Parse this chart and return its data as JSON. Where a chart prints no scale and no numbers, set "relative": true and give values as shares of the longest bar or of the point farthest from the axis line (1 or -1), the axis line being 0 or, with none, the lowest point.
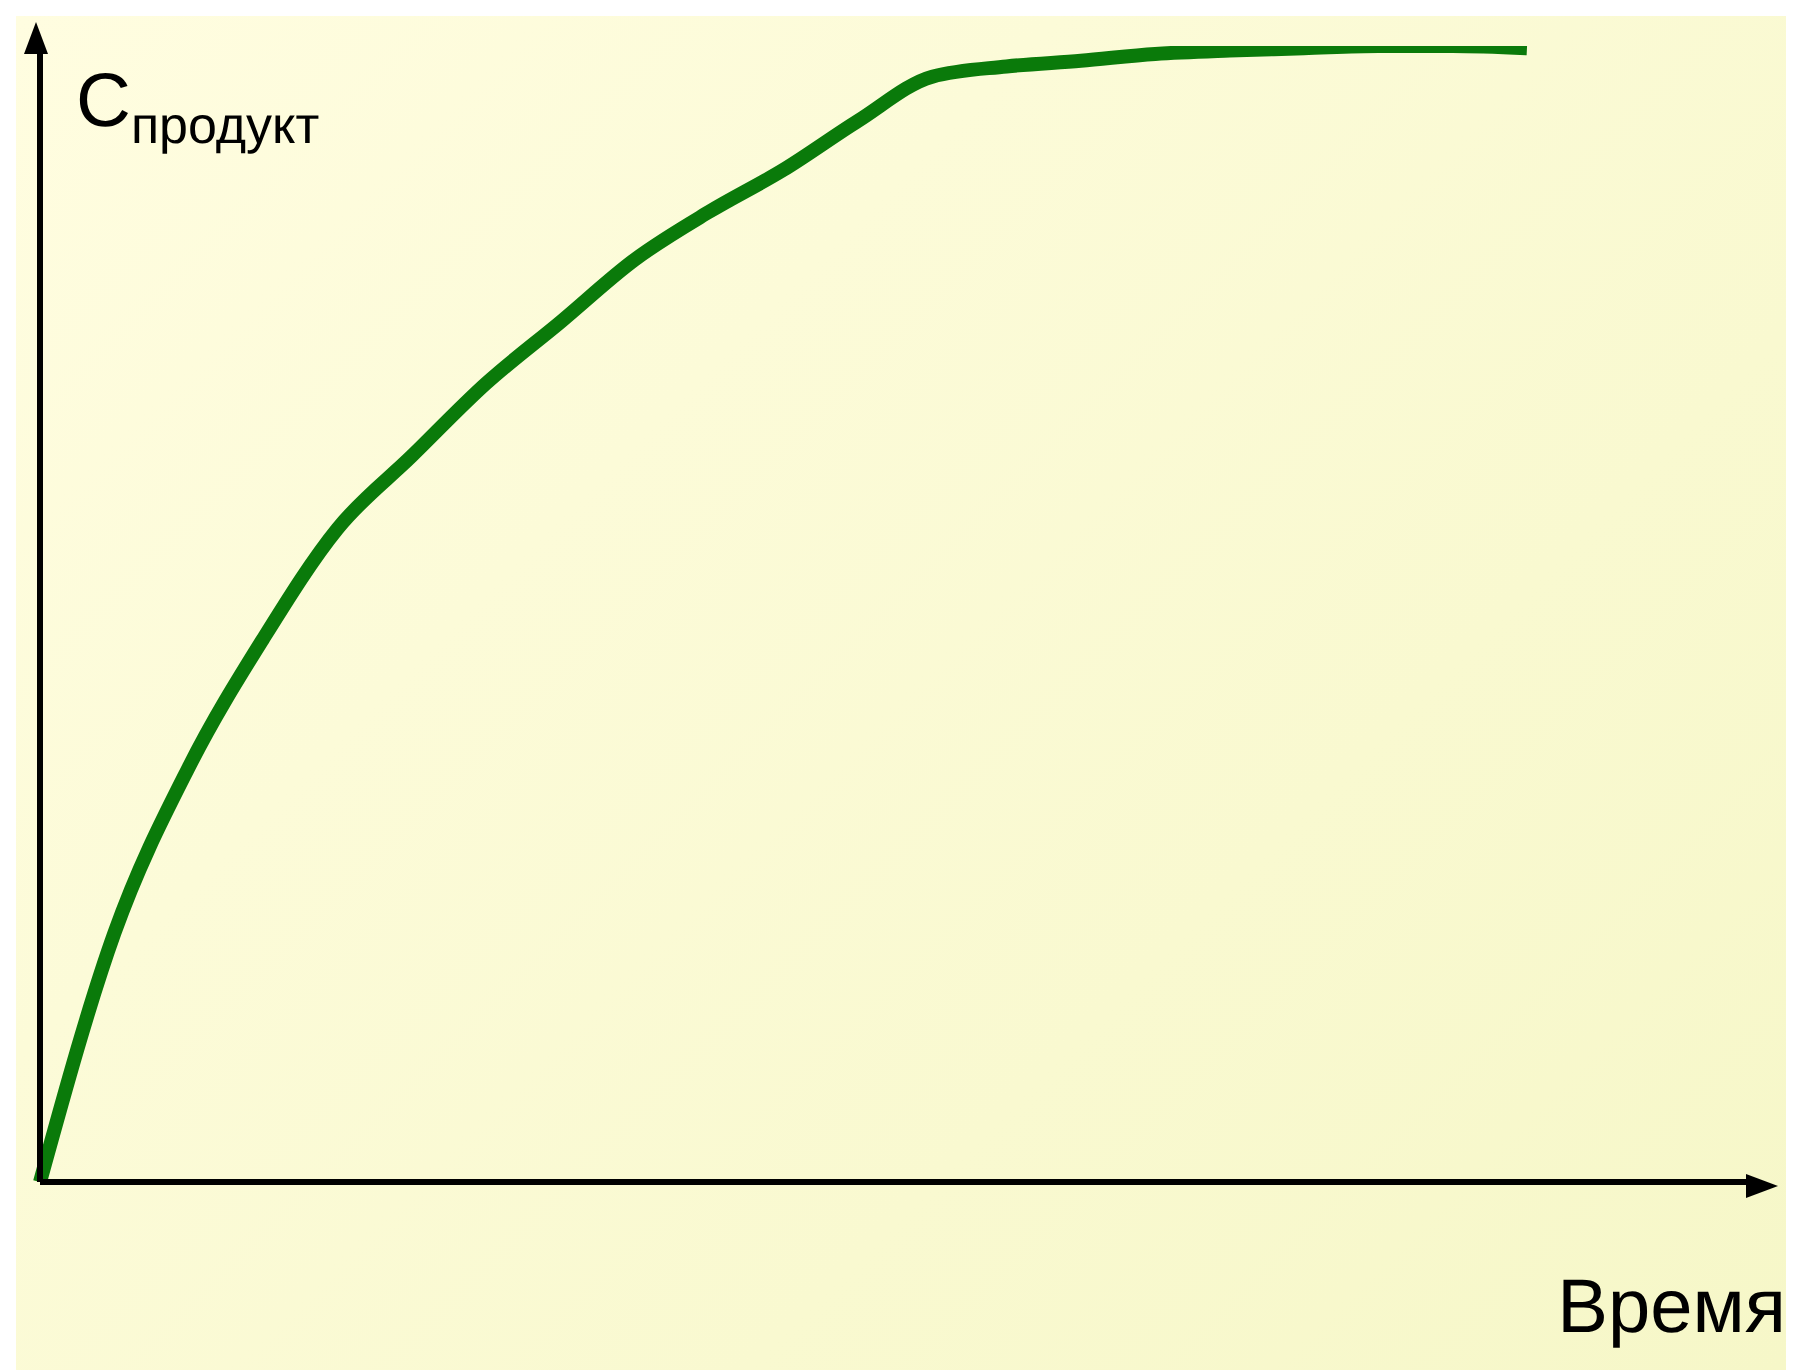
{
  "chart_data": {
    "type": "line",
    "relative": true,
    "ylabel": "C$_{продукт}$",
    "xlabel": "Время",
    "categories": [
      null,
      null,
      null,
      null,
      null,
      null,
      null,
      null,
      null,
      null,
      null,
      null,
      null,
      null,
      null,
      null,
      null,
      null,
      null,
      null,
      null,
      null,
      null,
      null
    ],
    "series": [
      {
        "color": "#0a7a0a",
        "values": [
          0,
          0.219,
          0.365,
          0.478,
          0.575,
          0.639,
          0.703,
          0.757,
          0.812,
          0.854,
          0.891,
          0.934,
          0.973,
          0.982,
          0.987,
          0.993,
          0.996,
          0.998,
          1,
          1,
          0.998,
          null,
          null,
          null
        ]
      }
    ],
    "legend": false,
    "grid": false,
    "marker": "none",
    "line_style": "solid"
  }
}
